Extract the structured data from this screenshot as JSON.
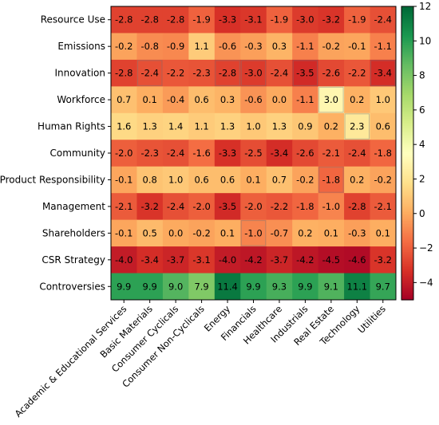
{
  "chart_data": {
    "type": "heatmap",
    "rows": [
      "Resource Use",
      "Emissions",
      "Innovation",
      "Workforce",
      "Human Rights",
      "Community",
      "Product Responsibility",
      "Management",
      "Shareholders",
      "CSR Strategy",
      "Controversies"
    ],
    "columns": [
      "Academic & Educational Services",
      "Basic Materials",
      "Consumer Cyclicals",
      "Consumer Non-Cyclicals",
      "Energy",
      "Financials",
      "Healthcare",
      "Industrials",
      "Real Estate",
      "Technology",
      "Utilities"
    ],
    "values": [
      [
        -2.8,
        -2.8,
        -2.8,
        -1.9,
        -3.3,
        -3.1,
        -1.9,
        -3.0,
        -3.2,
        -1.9,
        -2.4
      ],
      [
        -0.2,
        -0.8,
        -0.9,
        1.1,
        -0.6,
        -0.3,
        0.3,
        -1.1,
        -0.2,
        -0.1,
        -1.1
      ],
      [
        -2.8,
        -2.4,
        -2.2,
        -2.3,
        -2.8,
        -3.0,
        -2.4,
        -3.5,
        -2.6,
        -2.2,
        -3.4
      ],
      [
        0.7,
        0.1,
        -0.4,
        0.6,
        0.3,
        -0.6,
        0.0,
        -1.1,
        3.0,
        0.2,
        1.0
      ],
      [
        1.6,
        1.3,
        1.4,
        1.1,
        1.3,
        1.0,
        1.3,
        0.9,
        0.2,
        2.3,
        0.6
      ],
      [
        -2.0,
        -2.3,
        -2.4,
        -1.6,
        -3.3,
        -2.5,
        -3.4,
        -2.6,
        -2.1,
        -2.4,
        -1.8
      ],
      [
        -0.1,
        0.8,
        1.0,
        0.6,
        0.6,
        0.1,
        0.7,
        -0.2,
        -1.8,
        0.2,
        -0.2
      ],
      [
        -2.1,
        -3.2,
        -2.4,
        -2.0,
        -3.5,
        -2.0,
        -2.2,
        -1.8,
        -1.0,
        -2.8,
        -2.1
      ],
      [
        -0.1,
        0.5,
        0.0,
        -0.2,
        0.1,
        -1.0,
        -0.7,
        0.2,
        0.1,
        -0.3,
        0.1
      ],
      [
        -4.0,
        -3.4,
        -3.7,
        -3.1,
        -4.0,
        -4.2,
        -3.7,
        -4.2,
        -4.5,
        -4.6,
        -3.2
      ],
      [
        9.9,
        9.9,
        9.0,
        7.9,
        11.4,
        9.9,
        9.3,
        9.9,
        9.1,
        11.1,
        9.7
      ]
    ],
    "highlighted_cells": [
      [
        2,
        1
      ],
      [
        2,
        4
      ],
      [
        2,
        5
      ],
      [
        2,
        7
      ],
      [
        2,
        10
      ],
      [
        3,
        8
      ],
      [
        4,
        9
      ],
      [
        6,
        8
      ],
      [
        8,
        5
      ]
    ],
    "colorbar": {
      "min": -5,
      "max": 12,
      "ticks": [
        12,
        10,
        8,
        6,
        4,
        2,
        0,
        -2,
        -4
      ],
      "tick_labels": [
        "12",
        "10",
        "8",
        "6",
        "4",
        "2",
        "0",
        "−2",
        "−4"
      ],
      "colormap": "RdYlGn"
    },
    "title": "",
    "xlabel": "",
    "ylabel": ""
  }
}
